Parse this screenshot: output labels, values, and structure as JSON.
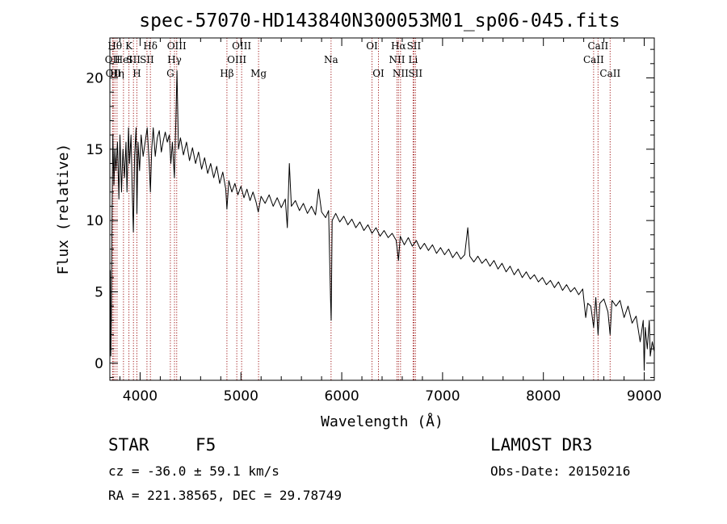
{
  "chart_data": {
    "type": "line",
    "title": "spec-57070-HD143840N300053M01_sp06-045.fits",
    "xlabel": "Wavelength (Å)",
    "ylabel": "Flux (relative)",
    "xlim": [
      3700,
      9100
    ],
    "ylim": [
      -1.2,
      22.8
    ],
    "x_ticks": [
      4000,
      5000,
      6000,
      7000,
      8000,
      9000
    ],
    "y_ticks": [
      0,
      5,
      10,
      15,
      20
    ],
    "x_minor_step": 200,
    "y_minor_step": 1,
    "grid": false,
    "series": [
      {
        "name": "spectrum",
        "points": [
          [
            3700,
            0
          ],
          [
            3705,
            6.5
          ],
          [
            3710,
            0.5
          ],
          [
            3715,
            3.5
          ],
          [
            3722,
            10.5
          ],
          [
            3730,
            16.0
          ],
          [
            3740,
            12.5
          ],
          [
            3750,
            15.0
          ],
          [
            3760,
            13.5
          ],
          [
            3775,
            15.5
          ],
          [
            3790,
            11.5
          ],
          [
            3800,
            16.0
          ],
          [
            3815,
            12.0
          ],
          [
            3830,
            15.0
          ],
          [
            3845,
            13.0
          ],
          [
            3860,
            15.5
          ],
          [
            3870,
            12.0
          ],
          [
            3885,
            16.5
          ],
          [
            3895,
            14.0
          ],
          [
            3910,
            16.0
          ],
          [
            3920,
            12.5
          ],
          [
            3933,
            9.2
          ],
          [
            3945,
            14.5
          ],
          [
            3960,
            16.5
          ],
          [
            3968,
            10.5
          ],
          [
            3980,
            15.5
          ],
          [
            3995,
            13.5
          ],
          [
            4010,
            16.0
          ],
          [
            4030,
            14.5
          ],
          [
            4050,
            15.5
          ],
          [
            4070,
            16.5
          ],
          [
            4090,
            14.0
          ],
          [
            4102,
            12.0
          ],
          [
            4115,
            15.0
          ],
          [
            4130,
            16.5
          ],
          [
            4150,
            14.5
          ],
          [
            4170,
            15.8
          ],
          [
            4190,
            16.3
          ],
          [
            4210,
            14.8
          ],
          [
            4230,
            15.6
          ],
          [
            4250,
            16.2
          ],
          [
            4270,
            15.5
          ],
          [
            4290,
            16.0
          ],
          [
            4305,
            14.0
          ],
          [
            4320,
            15.5
          ],
          [
            4340,
            13.0
          ],
          [
            4355,
            17.2
          ],
          [
            4366,
            20.5
          ],
          [
            4380,
            15.0
          ],
          [
            4400,
            15.8
          ],
          [
            4430,
            14.6
          ],
          [
            4460,
            15.5
          ],
          [
            4490,
            14.2
          ],
          [
            4520,
            15.1
          ],
          [
            4550,
            14.0
          ],
          [
            4580,
            14.8
          ],
          [
            4610,
            13.6
          ],
          [
            4640,
            14.4
          ],
          [
            4670,
            13.3
          ],
          [
            4700,
            14.0
          ],
          [
            4730,
            13.0
          ],
          [
            4760,
            13.8
          ],
          [
            4790,
            12.6
          ],
          [
            4820,
            13.4
          ],
          [
            4850,
            12.2
          ],
          [
            4861,
            10.8
          ],
          [
            4880,
            12.8
          ],
          [
            4910,
            12.0
          ],
          [
            4940,
            12.6
          ],
          [
            4970,
            11.8
          ],
          [
            5000,
            12.4
          ],
          [
            5030,
            11.6
          ],
          [
            5060,
            12.2
          ],
          [
            5090,
            11.4
          ],
          [
            5120,
            12.0
          ],
          [
            5150,
            11.3
          ],
          [
            5172,
            10.6
          ],
          [
            5200,
            11.7
          ],
          [
            5240,
            11.2
          ],
          [
            5280,
            11.8
          ],
          [
            5320,
            11.0
          ],
          [
            5360,
            11.6
          ],
          [
            5400,
            10.9
          ],
          [
            5440,
            11.5
          ],
          [
            5460,
            9.5
          ],
          [
            5480,
            14.0
          ],
          [
            5500,
            11.0
          ],
          [
            5540,
            11.4
          ],
          [
            5580,
            10.7
          ],
          [
            5620,
            11.2
          ],
          [
            5660,
            10.5
          ],
          [
            5700,
            11.0
          ],
          [
            5740,
            10.4
          ],
          [
            5770,
            12.2
          ],
          [
            5800,
            10.6
          ],
          [
            5840,
            10.2
          ],
          [
            5870,
            10.7
          ],
          [
            5889,
            4.5
          ],
          [
            5895,
            3.0
          ],
          [
            5905,
            10.0
          ],
          [
            5940,
            10.5
          ],
          [
            5980,
            9.9
          ],
          [
            6020,
            10.3
          ],
          [
            6060,
            9.7
          ],
          [
            6100,
            10.1
          ],
          [
            6140,
            9.5
          ],
          [
            6180,
            9.9
          ],
          [
            6220,
            9.3
          ],
          [
            6260,
            9.7
          ],
          [
            6300,
            9.1
          ],
          [
            6340,
            9.5
          ],
          [
            6380,
            8.9
          ],
          [
            6420,
            9.3
          ],
          [
            6460,
            8.8
          ],
          [
            6500,
            9.1
          ],
          [
            6540,
            8.6
          ],
          [
            6563,
            7.2
          ],
          [
            6580,
            8.9
          ],
          [
            6620,
            8.3
          ],
          [
            6660,
            8.8
          ],
          [
            6700,
            8.2
          ],
          [
            6740,
            8.6
          ],
          [
            6780,
            8.0
          ],
          [
            6820,
            8.4
          ],
          [
            6860,
            7.9
          ],
          [
            6900,
            8.3
          ],
          [
            6940,
            7.7
          ],
          [
            6980,
            8.1
          ],
          [
            7020,
            7.6
          ],
          [
            7060,
            8.0
          ],
          [
            7100,
            7.4
          ],
          [
            7140,
            7.8
          ],
          [
            7180,
            7.3
          ],
          [
            7220,
            7.6
          ],
          [
            7250,
            9.5
          ],
          [
            7270,
            7.5
          ],
          [
            7310,
            7.1
          ],
          [
            7350,
            7.5
          ],
          [
            7390,
            7.0
          ],
          [
            7430,
            7.3
          ],
          [
            7470,
            6.8
          ],
          [
            7510,
            7.2
          ],
          [
            7550,
            6.6
          ],
          [
            7590,
            7.0
          ],
          [
            7630,
            6.4
          ],
          [
            7670,
            6.8
          ],
          [
            7710,
            6.2
          ],
          [
            7750,
            6.6
          ],
          [
            7790,
            6.0
          ],
          [
            7830,
            6.4
          ],
          [
            7870,
            5.9
          ],
          [
            7910,
            6.2
          ],
          [
            7950,
            5.7
          ],
          [
            7990,
            6.0
          ],
          [
            8030,
            5.5
          ],
          [
            8070,
            5.8
          ],
          [
            8110,
            5.3
          ],
          [
            8150,
            5.7
          ],
          [
            8190,
            5.1
          ],
          [
            8230,
            5.5
          ],
          [
            8270,
            5.0
          ],
          [
            8310,
            5.3
          ],
          [
            8350,
            4.8
          ],
          [
            8390,
            5.2
          ],
          [
            8420,
            3.2
          ],
          [
            8440,
            4.2
          ],
          [
            8470,
            4.0
          ],
          [
            8498,
            2.5
          ],
          [
            8520,
            4.6
          ],
          [
            8542,
            2.0
          ],
          [
            8560,
            4.2
          ],
          [
            8600,
            4.5
          ],
          [
            8640,
            3.6
          ],
          [
            8662,
            2.0
          ],
          [
            8680,
            4.4
          ],
          [
            8720,
            4.0
          ],
          [
            8760,
            4.4
          ],
          [
            8800,
            3.2
          ],
          [
            8840,
            4.0
          ],
          [
            8880,
            2.8
          ],
          [
            8920,
            3.3
          ],
          [
            8960,
            1.5
          ],
          [
            8990,
            3.0
          ],
          [
            9000,
            -0.5
          ],
          [
            9010,
            2.5
          ],
          [
            9030,
            1.0
          ],
          [
            9050,
            3.0
          ],
          [
            9060,
            0.5
          ],
          [
            9080,
            1.5
          ],
          [
            9100,
            0.8
          ]
        ]
      }
    ],
    "lines": [
      {
        "wave": 3727,
        "label": "OII",
        "row": 1
      },
      {
        "wave": 3734,
        "label": "OII",
        "row": 2
      },
      {
        "wave": 3750,
        "label": "Hθ",
        "row": 0
      },
      {
        "wave": 3771,
        "label": "Hη",
        "row": 2
      },
      {
        "wave": 3835,
        "label": "HeI",
        "row": 1
      },
      {
        "wave": 3889,
        "label": "K",
        "row": 0
      },
      {
        "wave": 3934,
        "label": "SII",
        "row": 1
      },
      {
        "wave": 3968,
        "label": "H",
        "row": 2
      },
      {
        "wave": 4102,
        "label": "Hδ",
        "row": 0
      },
      {
        "wave": 4068,
        "label": "SII",
        "row": 1
      },
      {
        "wave": 4300,
        "label": "G",
        "row": 2
      },
      {
        "wave": 4341,
        "label": "Hγ",
        "row": 1
      },
      {
        "wave": 4363,
        "label": "OIII",
        "row": 0
      },
      {
        "wave": 4861,
        "label": "Hβ",
        "row": 2
      },
      {
        "wave": 4959,
        "label": "OIII",
        "row": 1
      },
      {
        "wave": 5007,
        "label": "OIII",
        "row": 0
      },
      {
        "wave": 5175,
        "label": "Mg",
        "row": 2
      },
      {
        "wave": 5894,
        "label": "Na",
        "row": 1
      },
      {
        "wave": 6300,
        "label": "OI",
        "row": 0
      },
      {
        "wave": 6364,
        "label": "OI",
        "row": 2
      },
      {
        "wave": 6548,
        "label": "NII",
        "row": 1
      },
      {
        "wave": 6563,
        "label": "Hα",
        "row": 0
      },
      {
        "wave": 6583,
        "label": "NII",
        "row": 2
      },
      {
        "wave": 6708,
        "label": "Li",
        "row": 1
      },
      {
        "wave": 6716,
        "label": "SII",
        "row": 0
      },
      {
        "wave": 6731,
        "label": "SII",
        "row": 2
      },
      {
        "wave": 8498,
        "label": "CaII",
        "row": 1
      },
      {
        "wave": 8542,
        "label": "CaII",
        "row": 0
      },
      {
        "wave": 8662,
        "label": "CaII",
        "row": 2
      }
    ]
  },
  "colors": {
    "spectrum": "#000000",
    "line_marker": "#a01818",
    "axes": "#000000",
    "background": "#ffffff"
  },
  "footer": {
    "object_class": "STAR",
    "subclass": "F5",
    "survey": "LAMOST DR3",
    "redshift": "cz = -36.0 ± 59.1 km/s",
    "obs_date": "Obs-Date: 20150216",
    "coords": "RA = 221.38565, DEC =  29.78749"
  }
}
